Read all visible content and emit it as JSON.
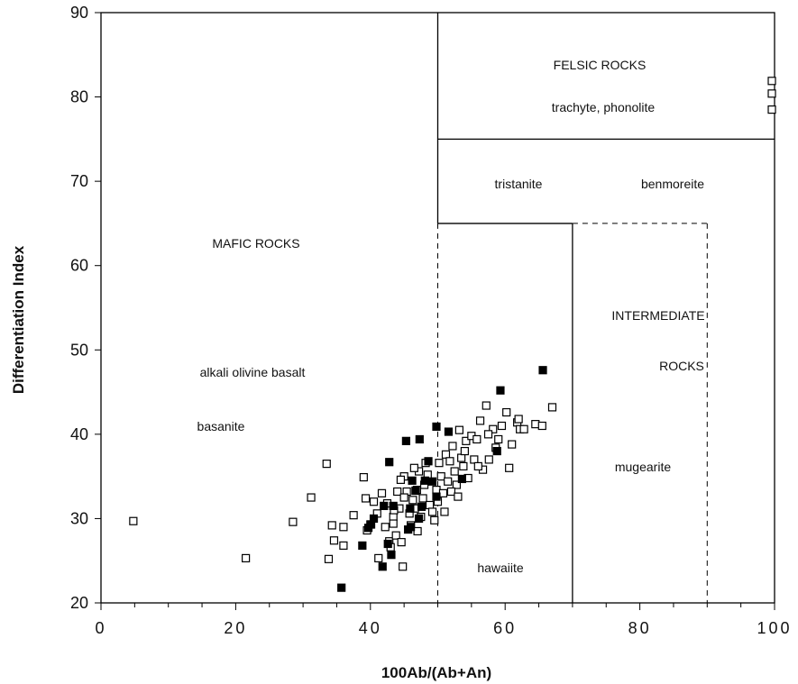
{
  "chart_data": {
    "type": "scatter",
    "title": "",
    "xlabel": "100Ab/(Ab+An)",
    "ylabel": "Differentiation Index",
    "xlim": [
      0,
      100
    ],
    "ylim": [
      20,
      90
    ],
    "xticks": [
      "0",
      "20",
      "40",
      "60",
      "80",
      "100"
    ],
    "yticks": [
      "20",
      "30",
      "40",
      "50",
      "60",
      "70",
      "80",
      "90"
    ],
    "grid": false,
    "legend": "none",
    "region_labels": {
      "felsic": "FELSIC ROCKS",
      "trachyte": "trachyte, phonolite",
      "tristanite": "tristanite",
      "benmoreite": "benmoreite",
      "mafic": "MAFIC ROCKS",
      "alkali": "alkali olivine basalt",
      "basanite": "basanite",
      "intermediate1": "INTERMEDIATE",
      "intermediate2": "ROCKS",
      "mugearite": "mugearite",
      "hawaiite": "hawaiite"
    },
    "boundaries_solid": [
      [
        [
          50,
          90
        ],
        [
          50,
          65
        ]
      ],
      [
        [
          50,
          75
        ],
        [
          100,
          75
        ]
      ],
      [
        [
          50,
          65
        ],
        [
          70,
          65
        ]
      ],
      [
        [
          70,
          65
        ],
        [
          70,
          20
        ]
      ]
    ],
    "boundaries_dashed": [
      [
        [
          50,
          65
        ],
        [
          50,
          20
        ]
      ],
      [
        [
          70,
          65
        ],
        [
          90,
          65
        ]
      ],
      [
        [
          90,
          65
        ],
        [
          90,
          20
        ]
      ]
    ],
    "series": [
      {
        "marker": "open-square",
        "points": [
          [
            4.8,
            29.7
          ],
          [
            21.5,
            25.3
          ],
          [
            28.5,
            29.6
          ],
          [
            31.2,
            32.5
          ],
          [
            33.5,
            36.5
          ],
          [
            33.8,
            25.2
          ],
          [
            34.3,
            29.2
          ],
          [
            34.6,
            27.4
          ],
          [
            36.0,
            29.0
          ],
          [
            36.0,
            26.8
          ],
          [
            37.5,
            30.4
          ],
          [
            39.0,
            34.9
          ],
          [
            39.3,
            32.4
          ],
          [
            39.5,
            28.6
          ],
          [
            40.0,
            29.3
          ],
          [
            40.5,
            32.0
          ],
          [
            41.0,
            30.6
          ],
          [
            41.2,
            25.3
          ],
          [
            41.7,
            33.0
          ],
          [
            42.2,
            29.0
          ],
          [
            42.5,
            31.8
          ],
          [
            42.8,
            27.3
          ],
          [
            43.0,
            26.6
          ],
          [
            43.4,
            30.2
          ],
          [
            43.4,
            29.4
          ],
          [
            43.8,
            28.0
          ],
          [
            44.0,
            33.2
          ],
          [
            44.3,
            31.2
          ],
          [
            44.6,
            27.2
          ],
          [
            44.8,
            24.3
          ],
          [
            45.0,
            35.0
          ],
          [
            45.4,
            33.2
          ],
          [
            45.8,
            30.6
          ],
          [
            46.0,
            29.2
          ],
          [
            46.3,
            32.2
          ],
          [
            46.6,
            31.2
          ],
          [
            46.9,
            33.4
          ],
          [
            47.2,
            35.6
          ],
          [
            47.5,
            30.2
          ],
          [
            47.8,
            32.4
          ],
          [
            48.2,
            36.6
          ],
          [
            48.5,
            35.2
          ],
          [
            48.8,
            31.6
          ],
          [
            49.2,
            30.8
          ],
          [
            49.5,
            29.8
          ],
          [
            49.8,
            33.4
          ],
          [
            50.2,
            36.6
          ],
          [
            50.5,
            35.0
          ],
          [
            50.8,
            33.0
          ],
          [
            51.2,
            37.6
          ],
          [
            51.5,
            34.4
          ],
          [
            51.8,
            36.8
          ],
          [
            52.2,
            38.6
          ],
          [
            52.5,
            35.6
          ],
          [
            52.8,
            34.0
          ],
          [
            53.2,
            40.5
          ],
          [
            53.5,
            37.2
          ],
          [
            53.8,
            36.2
          ],
          [
            54.2,
            39.2
          ],
          [
            54.5,
            34.8
          ],
          [
            55.0,
            39.8
          ],
          [
            55.4,
            37.0
          ],
          [
            55.8,
            39.4
          ],
          [
            56.3,
            41.6
          ],
          [
            56.7,
            35.8
          ],
          [
            57.2,
            43.4
          ],
          [
            57.6,
            37.0
          ],
          [
            58.2,
            40.6
          ],
          [
            58.6,
            38.4
          ],
          [
            59.0,
            39.4
          ],
          [
            60.2,
            42.6
          ],
          [
            60.6,
            36.0
          ],
          [
            61.0,
            38.8
          ],
          [
            61.8,
            41.4
          ],
          [
            62.2,
            40.6
          ],
          [
            62.8,
            40.6
          ],
          [
            64.5,
            41.2
          ],
          [
            65.5,
            41.0
          ],
          [
            67.0,
            43.2
          ],
          [
            43.5,
            31.0
          ],
          [
            44.5,
            34.6
          ],
          [
            45.0,
            32.5
          ],
          [
            46.5,
            36.0
          ],
          [
            47.0,
            28.5
          ],
          [
            48.0,
            34.0
          ],
          [
            50.0,
            32.0
          ],
          [
            51.0,
            30.8
          ],
          [
            52.0,
            33.2
          ],
          [
            53.0,
            32.6
          ],
          [
            54.0,
            38.0
          ],
          [
            56.0,
            36.2
          ],
          [
            57.5,
            40.0
          ],
          [
            59.5,
            41.0
          ],
          [
            62.0,
            41.8
          ],
          [
            99.6,
            81.9
          ],
          [
            99.6,
            80.4
          ],
          [
            99.6,
            78.5
          ]
        ]
      },
      {
        "marker": "filled-square",
        "points": [
          [
            35.7,
            21.8
          ],
          [
            38.8,
            26.8
          ],
          [
            39.7,
            28.9
          ],
          [
            40.1,
            29.3
          ],
          [
            40.5,
            30.0
          ],
          [
            41.8,
            24.3
          ],
          [
            42.0,
            31.5
          ],
          [
            42.6,
            27.0
          ],
          [
            43.1,
            25.7
          ],
          [
            43.4,
            31.5
          ],
          [
            42.8,
            36.7
          ],
          [
            45.6,
            28.7
          ],
          [
            45.9,
            31.2
          ],
          [
            46.2,
            34.5
          ],
          [
            46.7,
            33.3
          ],
          [
            47.2,
            30.0
          ],
          [
            47.6,
            31.4
          ],
          [
            48.1,
            34.5
          ],
          [
            48.6,
            36.8
          ],
          [
            49.2,
            34.4
          ],
          [
            49.8,
            32.6
          ],
          [
            45.3,
            39.2
          ],
          [
            47.3,
            39.4
          ],
          [
            49.8,
            40.9
          ],
          [
            51.6,
            40.3
          ],
          [
            53.6,
            34.7
          ],
          [
            58.8,
            38.0
          ],
          [
            59.3,
            45.2
          ],
          [
            65.6,
            47.6
          ],
          [
            46.0,
            29.0
          ]
        ]
      }
    ]
  }
}
